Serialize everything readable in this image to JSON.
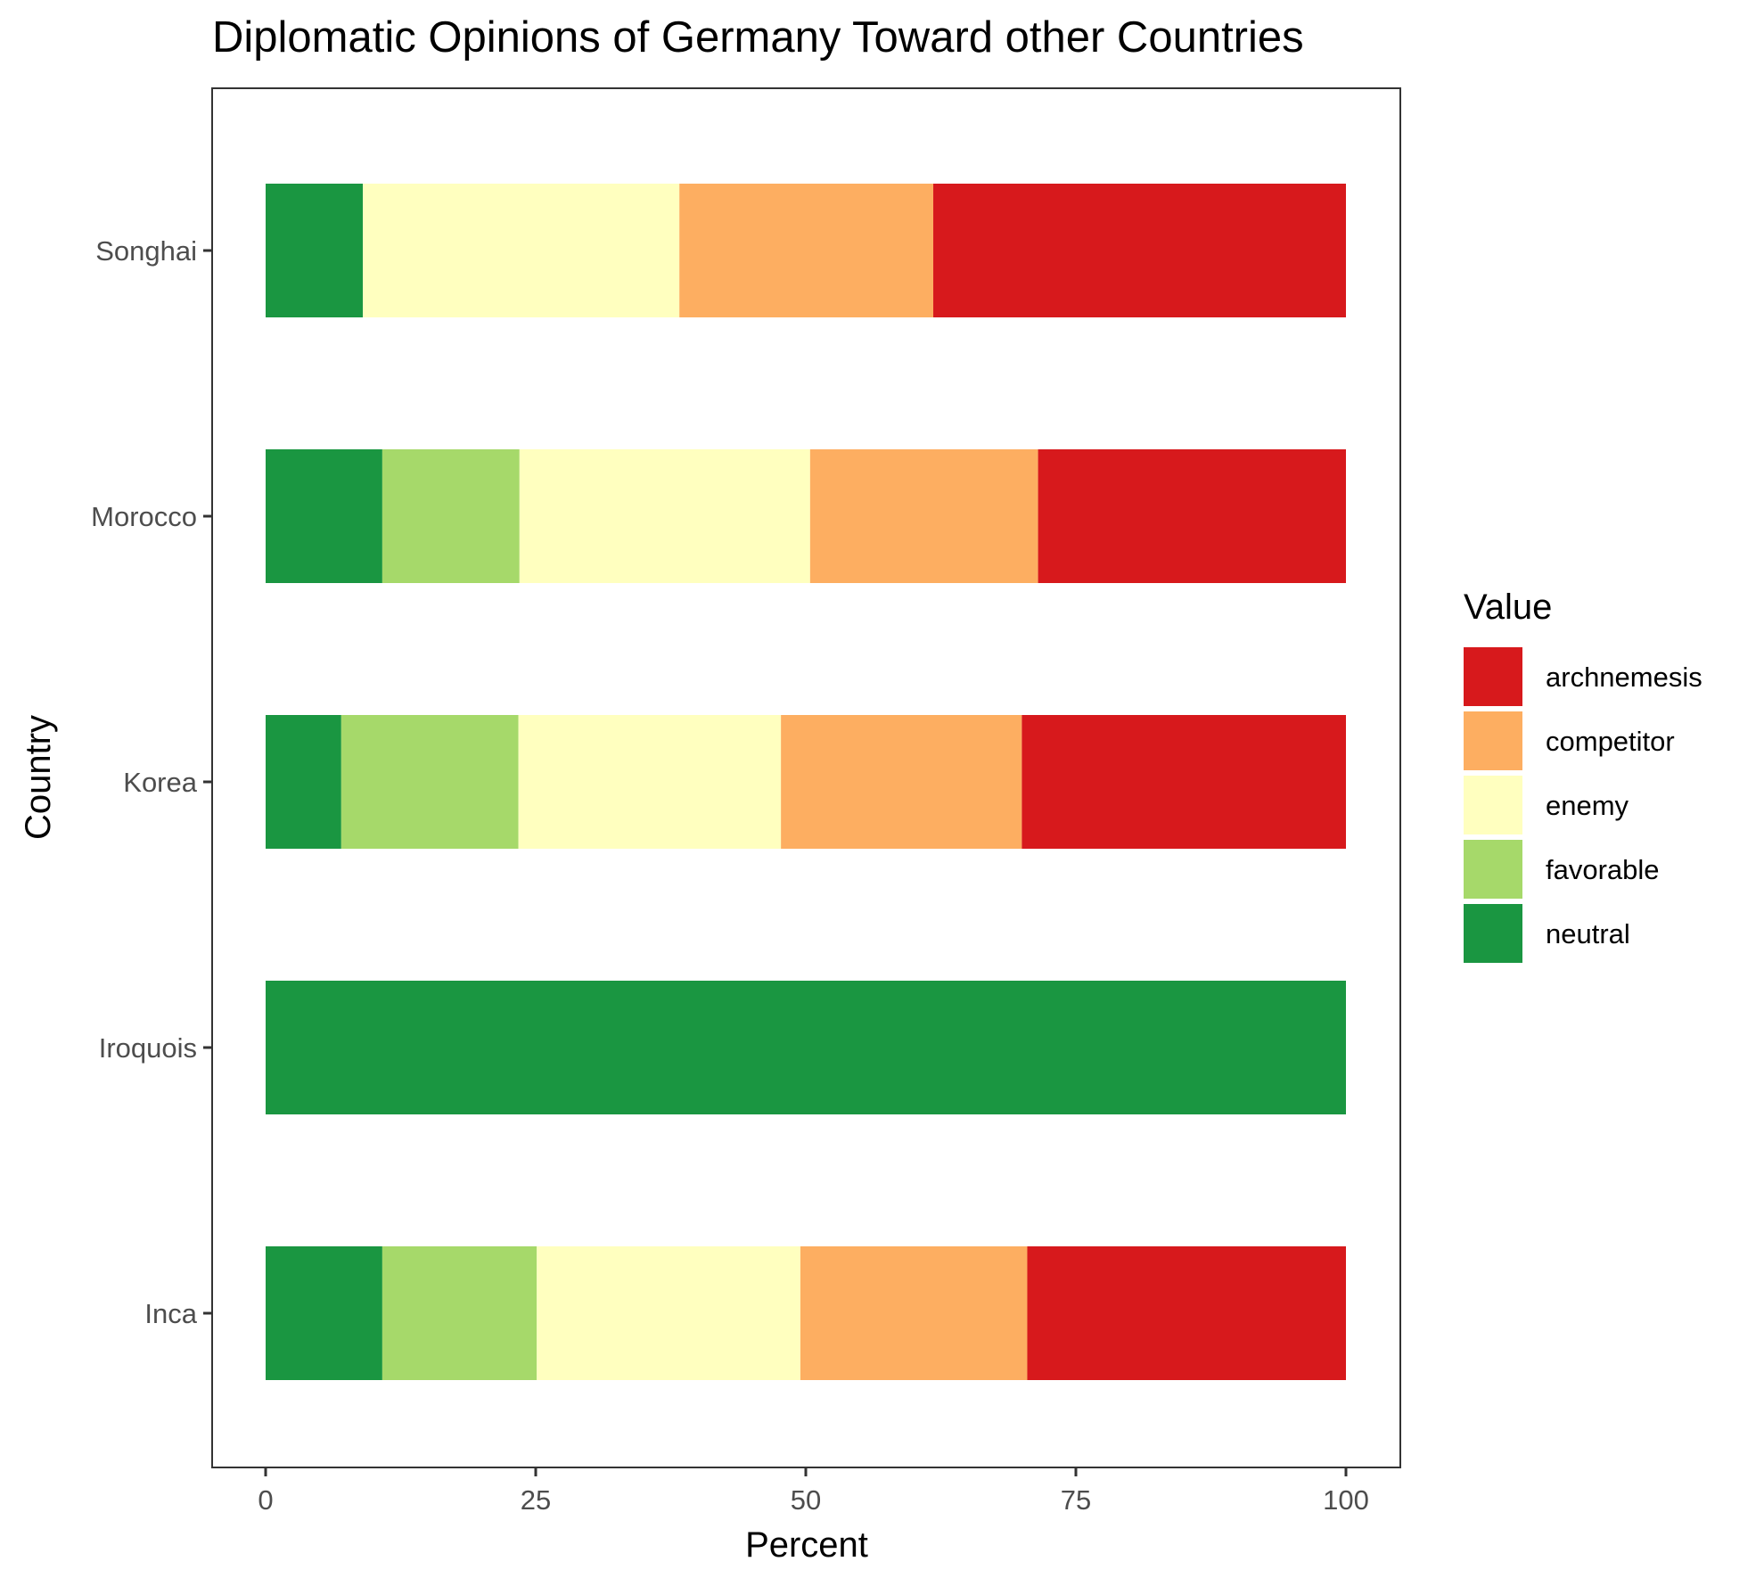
{
  "chart_data": {
    "type": "bar",
    "orientation": "horizontal",
    "stacked": true,
    "title": "Diplomatic Opinions of Germany Toward other Countries",
    "xlabel": "Percent",
    "ylabel": "Country",
    "xlim": [
      0,
      100
    ],
    "xticks": [
      "0",
      "25",
      "50",
      "75",
      "100"
    ],
    "grid": false,
    "categories": [
      "Inca",
      "Iroquois",
      "Korea",
      "Morocco",
      "Songhai"
    ],
    "series": [
      {
        "name": "neutral",
        "color": "#1a9641",
        "values": [
          10.8,
          100,
          7.0,
          10.8,
          9.0
        ]
      },
      {
        "name": "favorable",
        "color": "#a6d96a",
        "values": [
          14.3,
          0,
          16.4,
          12.7,
          0
        ]
      },
      {
        "name": "enemy",
        "color": "#ffffbf",
        "values": [
          24.4,
          0,
          24.3,
          26.9,
          29.3
        ]
      },
      {
        "name": "competitor",
        "color": "#fdae61",
        "values": [
          21.0,
          0,
          22.3,
          21.1,
          23.5
        ]
      },
      {
        "name": "archnemesis",
        "color": "#d7191c",
        "values": [
          29.5,
          0,
          30.0,
          28.5,
          38.2
        ]
      }
    ],
    "legend": {
      "title": "Value",
      "position": "right",
      "order": [
        "archnemesis",
        "competitor",
        "enemy",
        "favorable",
        "neutral"
      ]
    }
  }
}
